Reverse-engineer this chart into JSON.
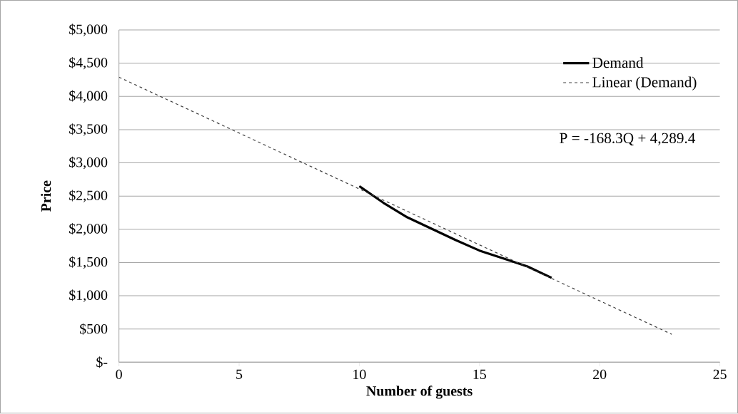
{
  "chart_data": {
    "type": "line",
    "xlabel": "Number of guests",
    "ylabel": "Price",
    "xlim": [
      0,
      25
    ],
    "xticks": [
      0,
      5,
      10,
      15,
      20,
      25
    ],
    "ylim": [
      0,
      5000
    ],
    "yticks": [
      {
        "value": 0,
        "label": "$-"
      },
      {
        "value": 500,
        "label": "$500"
      },
      {
        "value": 1000,
        "label": "$1,000"
      },
      {
        "value": 1500,
        "label": "$1,500"
      },
      {
        "value": 2000,
        "label": "$2,000"
      },
      {
        "value": 2500,
        "label": "$2,500"
      },
      {
        "value": 3000,
        "label": "$3,000"
      },
      {
        "value": 3500,
        "label": "$3,500"
      },
      {
        "value": 4000,
        "label": "$4,000"
      },
      {
        "value": 4500,
        "label": "$4,500"
      },
      {
        "value": 5000,
        "label": "$5,000"
      }
    ],
    "grid": "y",
    "legend": "top right",
    "series": [
      {
        "name": "Demand",
        "color": "#000000",
        "line_style": "solid",
        "x": [
          10,
          11,
          12,
          13,
          14,
          15,
          16,
          17,
          18
        ],
        "values": [
          2650,
          2400,
          2180,
          2010,
          1840,
          1680,
          1560,
          1440,
          1270
        ]
      },
      {
        "name": "Linear (Demand)",
        "color": "#404040",
        "line_style": "dashed",
        "x": [
          0,
          23
        ],
        "values": [
          4290,
          420
        ]
      }
    ],
    "annotations": [
      "P = -168.3Q + 4,289.4"
    ]
  }
}
